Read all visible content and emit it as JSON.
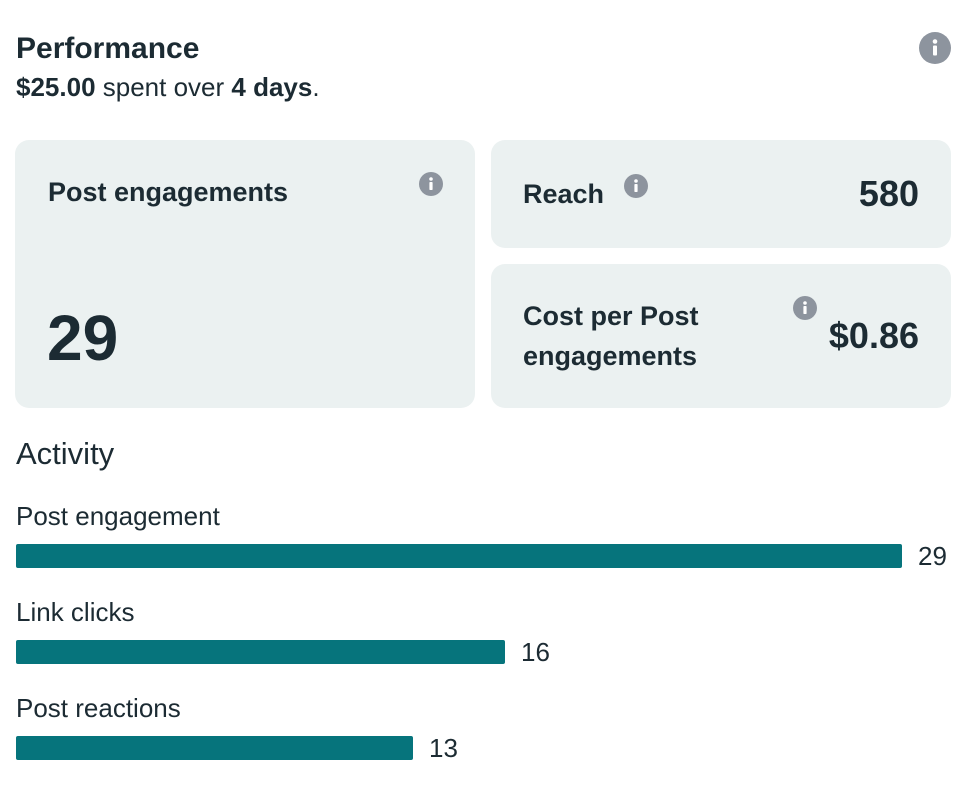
{
  "performance": {
    "title": "Performance",
    "spent_amount": "$25.00",
    "spent_mid": " spent over ",
    "spent_days": "4 days",
    "spent_end": ".",
    "info_icon": "info-icon"
  },
  "cards": {
    "post_engagements": {
      "label": "Post engagements",
      "value": "29"
    },
    "reach": {
      "label": "Reach",
      "value": "580"
    },
    "cost_per": {
      "label_line1": "Cost per Post",
      "label_line2": "engagements",
      "value": "$0.86"
    }
  },
  "activity": {
    "title": "Activity",
    "max": 29,
    "items": [
      {
        "label": "Post engagement",
        "value": "29",
        "amount": 29
      },
      {
        "label": "Link clicks",
        "value": "16",
        "amount": 16
      },
      {
        "label": "Post reactions",
        "value": "13",
        "amount": 13
      }
    ]
  },
  "colors": {
    "bar": "#06747c",
    "card_bg": "#ebf1f1",
    "icon": "#8d949e",
    "text": "#1c2b33"
  }
}
